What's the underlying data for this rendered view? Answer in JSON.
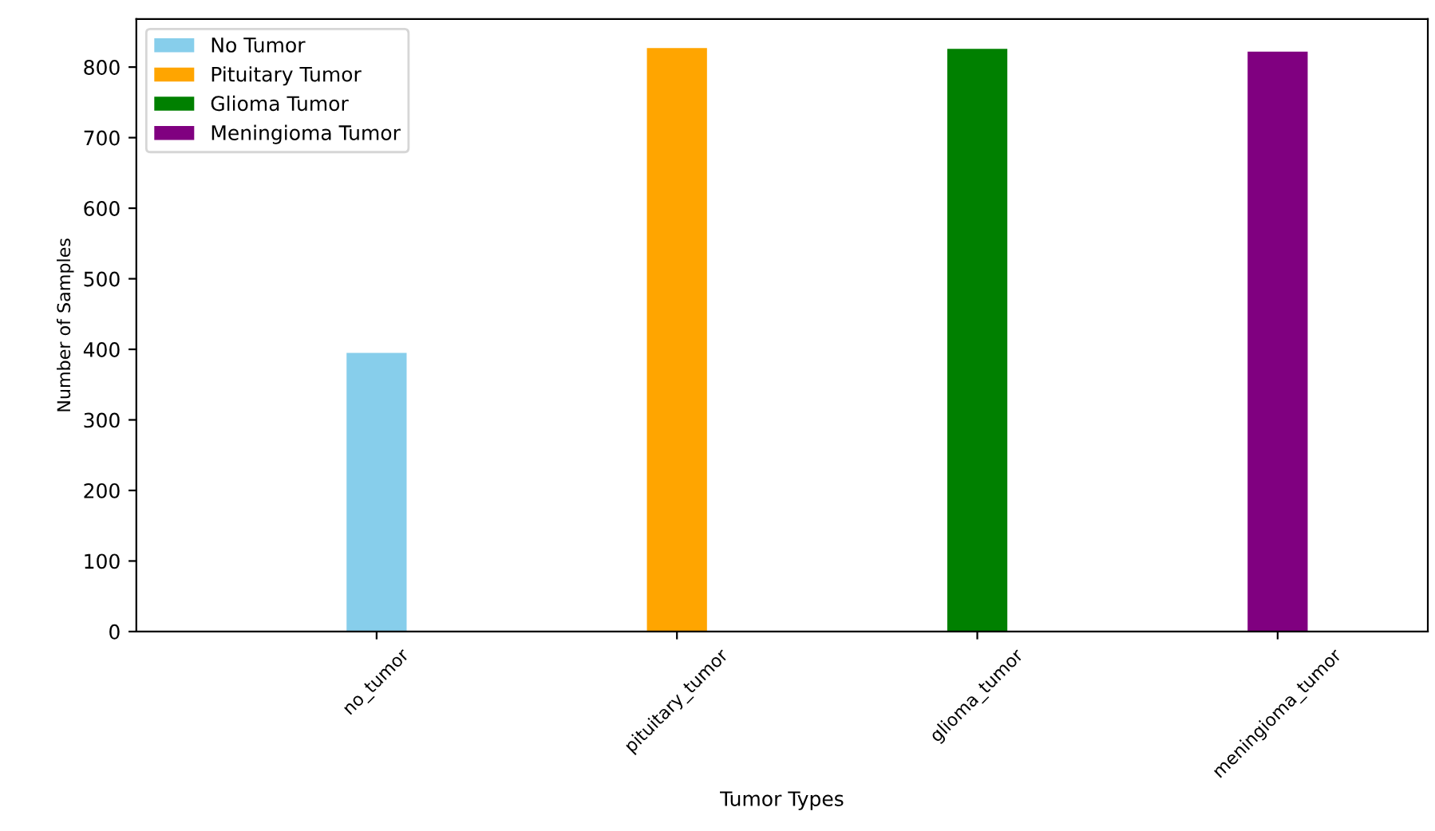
{
  "chart_data": {
    "type": "bar",
    "xlabel": "Tumor Types",
    "ylabel": "Number of Samples",
    "categories": [
      "no_tumor",
      "pituitary_tumor",
      "glioma_tumor",
      "meningioma_tumor"
    ],
    "series": [
      {
        "name": "No Tumor",
        "color": "#87ceeb",
        "values": [
          395,
          null,
          null,
          null
        ]
      },
      {
        "name": "Pituitary Tumor",
        "color": "#ffa500",
        "values": [
          null,
          827,
          null,
          null
        ]
      },
      {
        "name": "Glioma Tumor",
        "color": "#008000",
        "values": [
          null,
          null,
          826,
          null
        ]
      },
      {
        "name": "Meningioma Tumor",
        "color": "#800080",
        "values": [
          null,
          null,
          null,
          822
        ]
      }
    ],
    "ylim": [
      0,
      868
    ],
    "yticks": [
      0,
      100,
      200,
      300,
      400,
      500,
      600,
      700,
      800
    ],
    "grid": false,
    "legend": "top left"
  }
}
